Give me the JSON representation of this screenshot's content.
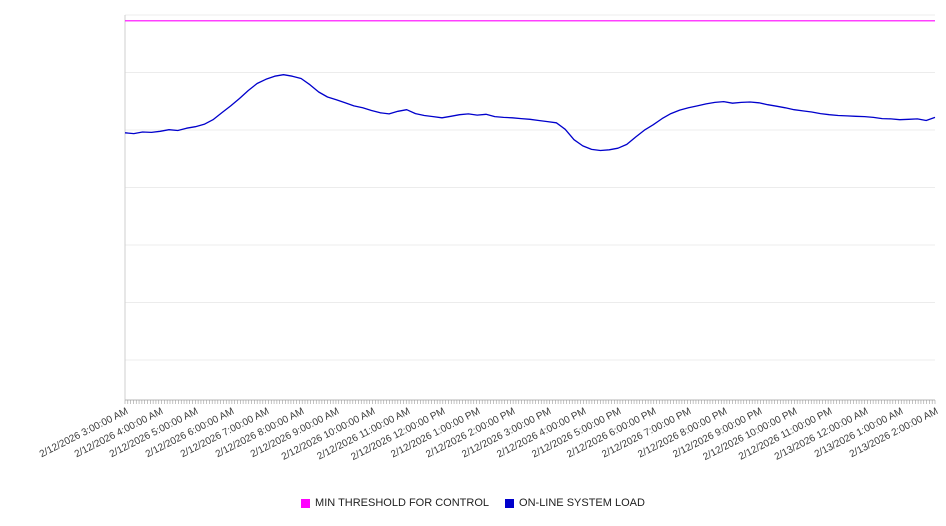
{
  "chart_data": {
    "type": "line",
    "title": "",
    "xlabel": "",
    "ylabel": "",
    "ylim": [
      0,
      100
    ],
    "grid": true,
    "legend_position": "bottom",
    "x_labels": [
      "2/12/2026 3:00:00 AM",
      "2/12/2026 4:00:00 AM",
      "2/12/2026 5:00:00 AM",
      "2/12/2026 6:00:00 AM",
      "2/12/2026 7:00:00 AM",
      "2/12/2026 8:00:00 AM",
      "2/12/2026 9:00:00 AM",
      "2/12/2026 10:00:00 AM",
      "2/12/2026 11:00:00 AM",
      "2/12/2026 12:00:00 PM",
      "2/12/2026 1:00:00 PM",
      "2/12/2026 2:00:00 PM",
      "2/12/2026 3:00:00 PM",
      "2/12/2026 4:00:00 PM",
      "2/12/2026 5:00:00 PM",
      "2/12/2026 6:00:00 PM",
      "2/12/2026 7:00:00 PM",
      "2/12/2026 8:00:00 PM",
      "2/12/2026 9:00:00 PM",
      "2/12/2026 10:00:00 PM",
      "2/12/2026 11:00:00 PM",
      "2/13/2026 12:00:00 AM",
      "2/13/2026 1:00:00 AM",
      "2/13/2026 2:00:00 AM"
    ],
    "series": [
      {
        "name": "MIN THRESHOLD FOR CONTROL",
        "color": "#ff00ff",
        "kind": "threshold",
        "value": 98.5
      },
      {
        "name": "ON-LINE SYSTEM LOAD",
        "color": "#0000cc",
        "kind": "line",
        "values": [
          69.4,
          69.2,
          69.6,
          69.5,
          69.8,
          70.2,
          70.0,
          70.6,
          71.0,
          71.6,
          72.8,
          74.6,
          76.4,
          78.3,
          80.4,
          82.2,
          83.3,
          84.1,
          84.5,
          84.1,
          83.5,
          81.9,
          80.0,
          78.7,
          78.0,
          77.2,
          76.4,
          75.9,
          75.2,
          74.6,
          74.3,
          75.0,
          75.4,
          74.4,
          73.9,
          73.6,
          73.3,
          73.7,
          74.1,
          74.3,
          74.0,
          74.2,
          73.6,
          73.4,
          73.3,
          73.1,
          72.9,
          72.6,
          72.3,
          72.0,
          70.3,
          67.6,
          66.0,
          65.1,
          64.8,
          65.0,
          65.4,
          66.4,
          68.3,
          70.1,
          71.5,
          73.1,
          74.4,
          75.3,
          75.9,
          76.4,
          76.9,
          77.3,
          77.5,
          77.1,
          77.3,
          77.4,
          77.2,
          76.7,
          76.3,
          75.9,
          75.4,
          75.1,
          74.8,
          74.4,
          74.1,
          73.9,
          73.8,
          73.7,
          73.6,
          73.4,
          73.1,
          73.0,
          72.8,
          72.9,
          73.0,
          72.6,
          73.4
        ]
      }
    ]
  },
  "legend": {
    "items": [
      {
        "label": "MIN THRESHOLD FOR CONTROL",
        "color": "#ff00ff"
      },
      {
        "label": "ON-LINE SYSTEM LOAD",
        "color": "#0000cc"
      }
    ]
  }
}
